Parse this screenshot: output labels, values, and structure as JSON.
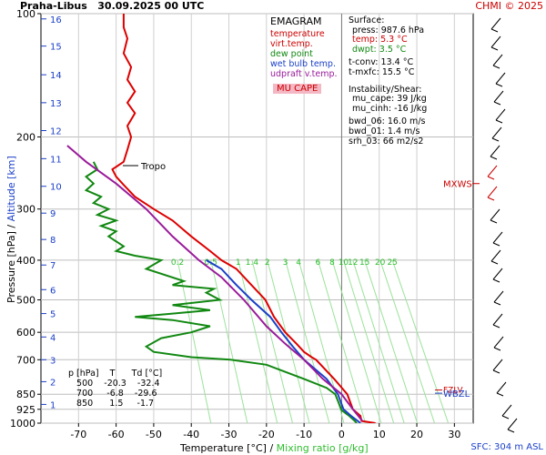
{
  "header": {
    "station": "Praha-Libus",
    "datetime": "30.09.2025 00 UTC",
    "copyright": "CHMI © 2025",
    "sfc": "SFC: 304 m ASL"
  },
  "axes": {
    "xlabel": "Temperature [°C]",
    "xlabel_sep": " / ",
    "xlabel_mix": "Mixing ratio [g/kg]",
    "ylabel": "Pressure [hPa]",
    "ylabel_sep": " / ",
    "ylabel_alt": "Altitude [km]"
  },
  "legend": {
    "title": "EMAGRAM",
    "items": [
      {
        "label": "temperature",
        "color": "#cc0000"
      },
      {
        "label": "virt.temp.",
        "color": "#cc0000"
      },
      {
        "label": "dew point",
        "color": "#118811"
      },
      {
        "label": "wet bulb temp.",
        "color": "#1a3fc8"
      },
      {
        "label": "udpraft v.temp.",
        "color": "#9a1a9a"
      }
    ],
    "mucape": "MU CAPE"
  },
  "info": {
    "surface_title": "Surface:",
    "press": "press: 987.6 hPa",
    "temp": "temp: 5.3 °C",
    "dwpt": "dwpt: 3.5 °C",
    "tconv": "t-conv: 13.4 °C",
    "tmxfc": "t-mxfc: 15.5 °C",
    "instab_title": "Instability/Shear:",
    "mu_cape": "mu_cape: 39 J/kg",
    "mu_cinh": "mu_cinh: -16 J/kg",
    "bwd06": "bwd_06: 16.0 m/s",
    "bwd01": "bwd_01: 1.4 m/s",
    "srh03": "srh_03: 66 m2/s2"
  },
  "table": {
    "header": "p [hPa]    T      Td [°C]",
    "rows": [
      "   500    -20.3    -32.4",
      "   700     -6.8    -29.6",
      "   850      1.5     -1.7"
    ]
  },
  "chart_data": {
    "type": "line",
    "title": "Praha-Libus 30.09.2025 00 UTC",
    "xlabel": "Temperature [°C] / Mixing ratio [g/kg]",
    "ylabel": "Pressure [hPa] / Altitude [km]",
    "x_ticks": [
      -70,
      -60,
      -50,
      -40,
      -30,
      -20,
      -10,
      0,
      10,
      20,
      30
    ],
    "xlim": [
      -80,
      35
    ],
    "y_scale": "log",
    "ylim": [
      1000,
      100
    ],
    "y_ticks": [
      1000,
      925,
      850,
      700,
      600,
      500,
      400,
      300,
      200,
      100
    ],
    "alt_ticks_km": [
      1,
      2,
      3,
      4,
      5,
      6,
      7,
      8,
      9,
      10,
      11,
      12,
      13,
      14,
      15,
      16
    ],
    "alt_tick_pressures": [
      900,
      792,
      700,
      616,
      540,
      472,
      411,
      356,
      307,
      264,
      226,
      193,
      165,
      141,
      120,
      103
    ],
    "mixing_ratio_labels": [
      "0.2",
      "0.5",
      "1",
      "1.4",
      "2",
      "3",
      "4",
      "6",
      "8",
      "10",
      "12",
      "15",
      "20",
      "25"
    ],
    "mixing_ratio_values": [
      0.2,
      0.5,
      1,
      1.4,
      2,
      3,
      4,
      6,
      8,
      10,
      12,
      15,
      20,
      25
    ],
    "levels_annotations": [
      {
        "label": "Tropo",
        "pressure": 235
      },
      {
        "label": "MXWS",
        "pressure": 260
      },
      {
        "label": "FZLV",
        "pressure": 830
      },
      {
        "label": "WBZL",
        "pressure": 845
      }
    ],
    "series": [
      {
        "name": "temperature",
        "color": "#dd0000",
        "points": [
          [
            9,
            1000
          ],
          [
            5.3,
            987.6
          ],
          [
            5,
            960
          ],
          [
            3,
            925
          ],
          [
            1.5,
            850
          ],
          [
            -2,
            780
          ],
          [
            -6.8,
            700
          ],
          [
            -8,
            690
          ],
          [
            -10,
            670
          ],
          [
            -12,
            640
          ],
          [
            -15,
            600
          ],
          [
            -18,
            550
          ],
          [
            -20.3,
            500
          ],
          [
            -24,
            460
          ],
          [
            -28,
            420
          ],
          [
            -32,
            400
          ],
          [
            -35,
            380
          ],
          [
            -40,
            350
          ],
          [
            -45,
            320
          ],
          [
            -50,
            300
          ],
          [
            -55,
            280
          ],
          [
            -58,
            262
          ],
          [
            -60,
            250
          ],
          [
            -61,
            240
          ],
          [
            -58,
            230
          ],
          [
            -57,
            215
          ],
          [
            -56,
            200
          ],
          [
            -57,
            188
          ],
          [
            -55,
            175
          ],
          [
            -57,
            165
          ],
          [
            -55,
            155
          ],
          [
            -57,
            145
          ],
          [
            -56,
            135
          ],
          [
            -58,
            125
          ],
          [
            -57,
            115
          ],
          [
            -58,
            108
          ],
          [
            -58,
            100
          ]
        ]
      },
      {
        "name": "dew point",
        "color": "#118811",
        "points": [
          [
            4,
            1000
          ],
          [
            3.5,
            987.6
          ],
          [
            2,
            960
          ],
          [
            0,
            930
          ],
          [
            -1.7,
            850
          ],
          [
            -4,
            820
          ],
          [
            -10,
            780
          ],
          [
            -20,
            720
          ],
          [
            -29.6,
            700
          ],
          [
            -40,
            690
          ],
          [
            -50,
            670
          ],
          [
            -52,
            650
          ],
          [
            -48,
            620
          ],
          [
            -40,
            600
          ],
          [
            -35,
            580
          ],
          [
            -45,
            560
          ],
          [
            -55,
            550
          ],
          [
            -45,
            540
          ],
          [
            -35,
            530
          ],
          [
            -45,
            515
          ],
          [
            -32.4,
            500
          ],
          [
            -36,
            480
          ],
          [
            -34,
            470
          ],
          [
            -45,
            460
          ],
          [
            -42,
            450
          ],
          [
            -52,
            420
          ],
          [
            -48,
            400
          ],
          [
            -55,
            390
          ],
          [
            -60,
            380
          ],
          [
            -58,
            370
          ],
          [
            -62,
            350
          ],
          [
            -60,
            340
          ],
          [
            -64,
            330
          ],
          [
            -60,
            320
          ],
          [
            -65,
            310
          ],
          [
            -62,
            300
          ],
          [
            -66,
            290
          ],
          [
            -64,
            280
          ],
          [
            -68,
            270
          ],
          [
            -66,
            260
          ],
          [
            -68,
            250
          ],
          [
            -65,
            240
          ],
          [
            -66,
            230
          ]
        ]
      },
      {
        "name": "wet bulb temp.",
        "color": "#1a3fc8",
        "points": [
          [
            5,
            1000
          ],
          [
            4.3,
            987.6
          ],
          [
            2.5,
            960
          ],
          [
            0.5,
            925
          ],
          [
            -1,
            850
          ],
          [
            -4,
            780
          ],
          [
            -10,
            700
          ],
          [
            -13,
            650
          ],
          [
            -16,
            600
          ],
          [
            -19,
            550
          ],
          [
            -24,
            500
          ],
          [
            -28,
            460
          ],
          [
            -32,
            420
          ],
          [
            -36,
            400
          ]
        ]
      },
      {
        "name": "udpraft v.temp.",
        "color": "#9a1a9a",
        "points": [
          [
            5.5,
            987.6
          ],
          [
            3,
            925
          ],
          [
            0,
            850
          ],
          [
            -5,
            780
          ],
          [
            -10,
            700
          ],
          [
            -15,
            640
          ],
          [
            -20,
            580
          ],
          [
            -26,
            500
          ],
          [
            -32,
            440
          ],
          [
            -38,
            400
          ],
          [
            -45,
            350
          ],
          [
            -52,
            300
          ],
          [
            -60,
            260
          ],
          [
            -68,
            230
          ],
          [
            -73,
            210
          ]
        ]
      }
    ]
  }
}
